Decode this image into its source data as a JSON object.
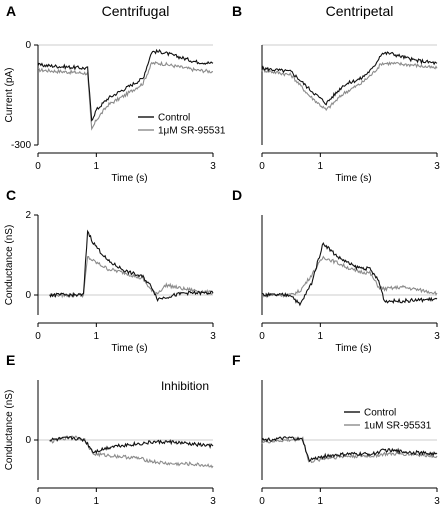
{
  "chart_data": [
    {
      "type": "line",
      "panel": "A",
      "title": "Centrifugal",
      "xlabel": "Time (s)",
      "ylabel": "Current (pA)",
      "xlim": [
        0,
        3
      ],
      "ylim": [
        -300,
        0
      ],
      "xticks": [
        "0",
        "1",
        "3"
      ],
      "yticks": [
        "0",
        "-300"
      ],
      "zero_line": 0,
      "legend": {
        "position": "bottom-right",
        "entries": [
          "Control",
          "1μM SR-95531"
        ]
      },
      "series": [
        {
          "name": "Control",
          "color": "#111111",
          "x": [
            0,
            0.85,
            0.92,
            1.0,
            1.2,
            1.5,
            1.8,
            1.95,
            2.1,
            2.4,
            2.7,
            3.0
          ],
          "y": [
            -60,
            -70,
            -225,
            -195,
            -160,
            -130,
            -100,
            -20,
            -20,
            -35,
            -50,
            -55
          ]
        },
        {
          "name": "1μM SR-95531",
          "color": "#8c8c8c",
          "x": [
            0,
            0.85,
            0.92,
            1.0,
            1.2,
            1.5,
            1.8,
            1.95,
            2.1,
            2.4,
            2.7,
            3.0
          ],
          "y": [
            -75,
            -85,
            -255,
            -225,
            -180,
            -150,
            -115,
            -55,
            -55,
            -65,
            -75,
            -80
          ]
        }
      ]
    },
    {
      "type": "line",
      "panel": "B",
      "title": "Centripetal",
      "xlabel": "Time (s)",
      "ylabel": "",
      "xlim": [
        0,
        3
      ],
      "ylim": [
        -300,
        0
      ],
      "xticks": [
        "0",
        "1",
        "3"
      ],
      "yticks": [],
      "zero_line": 0,
      "series": [
        {
          "name": "Control",
          "color": "#111111",
          "x": [
            0,
            0.5,
            0.8,
            1.1,
            1.4,
            1.7,
            1.9,
            2.05,
            2.2,
            2.6,
            3.0
          ],
          "y": [
            -70,
            -80,
            -130,
            -175,
            -120,
            -100,
            -70,
            -25,
            -25,
            -45,
            -55
          ]
        },
        {
          "name": "1μM SR-95531",
          "color": "#8c8c8c",
          "x": [
            0,
            0.5,
            0.8,
            1.1,
            1.4,
            1.7,
            1.9,
            2.05,
            2.2,
            2.6,
            3.0
          ],
          "y": [
            -75,
            -90,
            -150,
            -195,
            -145,
            -115,
            -85,
            -55,
            -55,
            -60,
            -70
          ]
        }
      ]
    },
    {
      "type": "line",
      "panel": "C",
      "title": "",
      "xlabel": "Time (s)",
      "ylabel": "Conductance (nS)",
      "xlim": [
        0,
        3
      ],
      "ylim": [
        -0.5,
        2
      ],
      "xticks": [
        "0",
        "1",
        "3"
      ],
      "yticks": [
        "2",
        "0"
      ],
      "zero_line": 0,
      "series": [
        {
          "name": "Control",
          "color": "#111111",
          "x": [
            0.2,
            0.78,
            0.85,
            0.95,
            1.2,
            1.5,
            1.8,
            1.95,
            2.05,
            2.2,
            2.5,
            3.0
          ],
          "y": [
            0,
            0,
            1.6,
            1.3,
            0.85,
            0.6,
            0.45,
            0.2,
            -0.1,
            -0.05,
            0.05,
            0.05
          ]
        },
        {
          "name": "1μM SR-95531",
          "color": "#8c8c8c",
          "x": [
            0.2,
            0.78,
            0.85,
            0.95,
            1.2,
            1.5,
            1.8,
            1.95,
            2.05,
            2.2,
            2.5,
            3.0
          ],
          "y": [
            0,
            0,
            0.95,
            0.85,
            0.65,
            0.55,
            0.4,
            0.1,
            0.05,
            0.25,
            0.15,
            0.05
          ]
        }
      ]
    },
    {
      "type": "line",
      "panel": "D",
      "title": "",
      "xlabel": "Time (s)",
      "ylabel": "",
      "xlim": [
        0,
        3
      ],
      "ylim": [
        -0.5,
        2
      ],
      "xticks": [
        "0",
        "1",
        "3"
      ],
      "yticks": [],
      "zero_line": 0,
      "series": [
        {
          "name": "Control",
          "color": "#111111",
          "x": [
            0,
            0.5,
            0.65,
            0.85,
            1.05,
            1.3,
            1.6,
            1.85,
            2.0,
            2.1,
            2.4,
            3.0
          ],
          "y": [
            0,
            0,
            -0.25,
            0.3,
            1.3,
            0.95,
            0.7,
            0.65,
            0.35,
            -0.15,
            -0.15,
            -0.1
          ]
        },
        {
          "name": "1μM SR-95531",
          "color": "#8c8c8c",
          "x": [
            0,
            0.5,
            0.65,
            0.85,
            1.05,
            1.3,
            1.6,
            1.85,
            2.0,
            2.1,
            2.4,
            3.0
          ],
          "y": [
            0,
            0,
            0.1,
            0.5,
            0.95,
            0.8,
            0.6,
            0.55,
            0.2,
            0.15,
            0.2,
            0.05
          ]
        }
      ]
    },
    {
      "type": "line",
      "panel": "E",
      "title": "",
      "annotation": "Inhibition",
      "xlabel": "Time (s)",
      "ylabel": "Conductance (nS)",
      "xlim": [
        0,
        3
      ],
      "ylim": [
        -1,
        1.5
      ],
      "xticks": [
        "0",
        "1",
        "3"
      ],
      "yticks": [
        "0"
      ],
      "zero_line": 0,
      "series": [
        {
          "name": "Control",
          "color": "#111111",
          "x": [
            0.2,
            0.6,
            0.8,
            0.95,
            1.3,
            1.7,
            2.0,
            2.3,
            2.6,
            3.0
          ],
          "y": [
            0,
            0.05,
            0.0,
            -0.3,
            -0.15,
            -0.1,
            -0.05,
            -0.05,
            -0.1,
            -0.15
          ]
        },
        {
          "name": "1μM SR-95531",
          "color": "#8c8c8c",
          "x": [
            0.2,
            0.6,
            0.8,
            0.95,
            1.3,
            1.7,
            2.0,
            2.3,
            2.6,
            3.0
          ],
          "y": [
            -0.05,
            0.1,
            0.0,
            -0.35,
            -0.4,
            -0.45,
            -0.55,
            -0.6,
            -0.6,
            -0.65
          ]
        }
      ]
    },
    {
      "type": "line",
      "panel": "F",
      "title": "",
      "xlabel": "Time (s)",
      "ylabel": "",
      "xlim": [
        0,
        3
      ],
      "ylim": [
        -1,
        1.5
      ],
      "xticks": [
        "0",
        "1",
        "3"
      ],
      "yticks": [],
      "zero_line": 0,
      "legend": {
        "position": "top-right",
        "entries": [
          "Control",
          "1uM SR-95531"
        ]
      },
      "series": [
        {
          "name": "Control",
          "color": "#111111",
          "x": [
            0,
            0.5,
            0.7,
            0.8,
            1.1,
            1.5,
            1.9,
            2.1,
            2.5,
            3.0
          ],
          "y": [
            0,
            0.05,
            0.0,
            -0.5,
            -0.4,
            -0.35,
            -0.35,
            -0.25,
            -0.3,
            -0.35
          ]
        },
        {
          "name": "1uM SR-95531",
          "color": "#8c8c8c",
          "x": [
            0,
            0.5,
            0.7,
            0.8,
            1.1,
            1.5,
            1.9,
            2.1,
            2.5,
            3.0
          ],
          "y": [
            -0.05,
            0.0,
            0.05,
            -0.55,
            -0.45,
            -0.4,
            -0.4,
            -0.35,
            -0.35,
            -0.4
          ]
        }
      ]
    }
  ]
}
